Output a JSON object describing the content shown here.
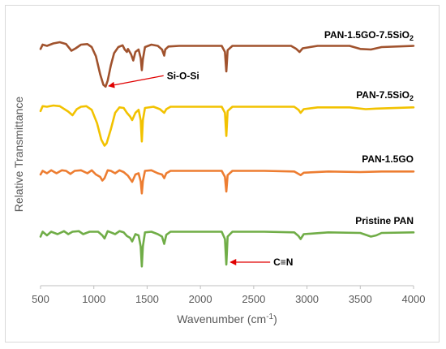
{
  "chart_data": {
    "type": "line",
    "xlabel": "Wavenumber (cm",
    "xlabel_sup": "-1",
    "xlabel_end": ")",
    "ylabel": "Relative Transmittance",
    "xlim": [
      500,
      4000
    ],
    "x_ticks": [
      "500",
      "1000",
      "1500",
      "2000",
      "2500",
      "3000",
      "3500",
      "4000"
    ],
    "grid": false,
    "series": [
      {
        "name": "PAN-1.5GO-7.5SiO",
        "name_sub": "2",
        "color": "#A0522D",
        "baseline": 0.0,
        "points": [
          [
            500,
            -3
          ],
          [
            520,
            4
          ],
          [
            560,
            2
          ],
          [
            620,
            6
          ],
          [
            680,
            8
          ],
          [
            740,
            5
          ],
          [
            790,
            -6
          ],
          [
            830,
            -2
          ],
          [
            880,
            4
          ],
          [
            940,
            5
          ],
          [
            980,
            0
          ],
          [
            1020,
            -15
          ],
          [
            1060,
            -45
          ],
          [
            1090,
            -62
          ],
          [
            1110,
            -65
          ],
          [
            1130,
            -55
          ],
          [
            1160,
            -30
          ],
          [
            1190,
            -10
          ],
          [
            1230,
            0
          ],
          [
            1270,
            3
          ],
          [
            1290,
            -4
          ],
          [
            1310,
            -8
          ],
          [
            1320,
            -3
          ],
          [
            1350,
            -12
          ],
          [
            1370,
            -22
          ],
          [
            1390,
            -8
          ],
          [
            1420,
            -4
          ],
          [
            1440,
            -18
          ],
          [
            1450,
            -38
          ],
          [
            1460,
            -20
          ],
          [
            1480,
            0
          ],
          [
            1540,
            4
          ],
          [
            1600,
            2
          ],
          [
            1640,
            -4
          ],
          [
            1660,
            -14
          ],
          [
            1670,
            -4
          ],
          [
            1700,
            1
          ],
          [
            1800,
            2
          ],
          [
            2000,
            2
          ],
          [
            2200,
            2
          ],
          [
            2230,
            -8
          ],
          [
            2243,
            -40
          ],
          [
            2255,
            -5
          ],
          [
            2300,
            2
          ],
          [
            2600,
            2
          ],
          [
            2850,
            2
          ],
          [
            2900,
            -3
          ],
          [
            2930,
            -8
          ],
          [
            2960,
            -2
          ],
          [
            3100,
            2
          ],
          [
            3400,
            2
          ],
          [
            3500,
            -3
          ],
          [
            3600,
            -4
          ],
          [
            3700,
            0
          ],
          [
            4000,
            2
          ]
        ]
      },
      {
        "name": "PAN-7.5SiO",
        "name_sub": "2",
        "color": "#F2C200",
        "baseline": 0.0,
        "points": [
          [
            500,
            -5
          ],
          [
            520,
            3
          ],
          [
            560,
            2
          ],
          [
            620,
            4
          ],
          [
            680,
            3
          ],
          [
            760,
            -6
          ],
          [
            800,
            -12
          ],
          [
            840,
            -2
          ],
          [
            880,
            2
          ],
          [
            930,
            3
          ],
          [
            980,
            -3
          ],
          [
            1030,
            -25
          ],
          [
            1070,
            -52
          ],
          [
            1100,
            -62
          ],
          [
            1120,
            -58
          ],
          [
            1160,
            -35
          ],
          [
            1200,
            -8
          ],
          [
            1240,
            1
          ],
          [
            1280,
            0
          ],
          [
            1310,
            -8
          ],
          [
            1340,
            -14
          ],
          [
            1360,
            -20
          ],
          [
            1390,
            -8
          ],
          [
            1420,
            -3
          ],
          [
            1440,
            -20
          ],
          [
            1450,
            -55
          ],
          [
            1460,
            -20
          ],
          [
            1480,
            0
          ],
          [
            1560,
            2
          ],
          [
            1620,
            -2
          ],
          [
            1660,
            -8
          ],
          [
            1680,
            -2
          ],
          [
            1720,
            2
          ],
          [
            1900,
            2
          ],
          [
            2200,
            2
          ],
          [
            2230,
            -8
          ],
          [
            2243,
            -46
          ],
          [
            2255,
            -5
          ],
          [
            2300,
            2
          ],
          [
            2600,
            2
          ],
          [
            2880,
            2
          ],
          [
            2920,
            -3
          ],
          [
            2940,
            -8
          ],
          [
            2970,
            -2
          ],
          [
            3100,
            1
          ],
          [
            3400,
            1
          ],
          [
            3550,
            -2
          ],
          [
            3650,
            -1
          ],
          [
            4000,
            1
          ]
        ]
      },
      {
        "name": "PAN-1.5GO",
        "name_sub": "",
        "color": "#ED7D31",
        "baseline": 0.0,
        "points": [
          [
            500,
            -4
          ],
          [
            520,
            2
          ],
          [
            560,
            -2
          ],
          [
            600,
            3
          ],
          [
            650,
            -2
          ],
          [
            700,
            3
          ],
          [
            740,
            2
          ],
          [
            780,
            -3
          ],
          [
            820,
            2
          ],
          [
            880,
            3
          ],
          [
            940,
            -2
          ],
          [
            980,
            3
          ],
          [
            1020,
            -4
          ],
          [
            1060,
            -8
          ],
          [
            1080,
            -14
          ],
          [
            1100,
            -10
          ],
          [
            1130,
            3
          ],
          [
            1160,
            2
          ],
          [
            1200,
            -2
          ],
          [
            1240,
            3
          ],
          [
            1280,
            0
          ],
          [
            1320,
            -6
          ],
          [
            1360,
            -16
          ],
          [
            1390,
            -4
          ],
          [
            1420,
            -2
          ],
          [
            1440,
            -15
          ],
          [
            1450,
            -35
          ],
          [
            1460,
            -15
          ],
          [
            1480,
            2
          ],
          [
            1540,
            3
          ],
          [
            1600,
            -2
          ],
          [
            1640,
            -4
          ],
          [
            1660,
            -10
          ],
          [
            1680,
            -2
          ],
          [
            1720,
            2
          ],
          [
            1900,
            2
          ],
          [
            2200,
            2
          ],
          [
            2230,
            -8
          ],
          [
            2243,
            -32
          ],
          [
            2255,
            -5
          ],
          [
            2300,
            2
          ],
          [
            2600,
            2
          ],
          [
            2880,
            1
          ],
          [
            2920,
            -3
          ],
          [
            2940,
            -5
          ],
          [
            2970,
            -1
          ],
          [
            3200,
            1
          ],
          [
            3500,
            0
          ],
          [
            3700,
            1
          ],
          [
            4000,
            1
          ]
        ]
      },
      {
        "name": "Pristine PAN",
        "name_sub": "",
        "color": "#70AD47",
        "baseline": 0.0,
        "points": [
          [
            500,
            -6
          ],
          [
            520,
            2
          ],
          [
            560,
            -4
          ],
          [
            600,
            2
          ],
          [
            660,
            -2
          ],
          [
            720,
            3
          ],
          [
            760,
            -2
          ],
          [
            800,
            2
          ],
          [
            860,
            3
          ],
          [
            900,
            -2
          ],
          [
            960,
            2
          ],
          [
            1040,
            2
          ],
          [
            1080,
            -4
          ],
          [
            1100,
            -9
          ],
          [
            1130,
            3
          ],
          [
            1160,
            1
          ],
          [
            1200,
            -2
          ],
          [
            1240,
            3
          ],
          [
            1280,
            1
          ],
          [
            1310,
            -5
          ],
          [
            1340,
            -8
          ],
          [
            1360,
            -14
          ],
          [
            1390,
            -2
          ],
          [
            1420,
            -4
          ],
          [
            1440,
            -22
          ],
          [
            1450,
            -55
          ],
          [
            1460,
            -22
          ],
          [
            1480,
            1
          ],
          [
            1540,
            2
          ],
          [
            1600,
            -2
          ],
          [
            1640,
            -6
          ],
          [
            1660,
            -18
          ],
          [
            1680,
            -3
          ],
          [
            1720,
            2
          ],
          [
            1900,
            2
          ],
          [
            2200,
            2
          ],
          [
            2230,
            -10
          ],
          [
            2243,
            -52
          ],
          [
            2255,
            -6
          ],
          [
            2300,
            2
          ],
          [
            2600,
            2
          ],
          [
            2880,
            1
          ],
          [
            2920,
            -5
          ],
          [
            2940,
            -10
          ],
          [
            2970,
            -2
          ],
          [
            3200,
            1
          ],
          [
            3500,
            0
          ],
          [
            3600,
            -6
          ],
          [
            3650,
            -4
          ],
          [
            3700,
            0
          ],
          [
            4000,
            1
          ]
        ]
      }
    ],
    "annotations": [
      {
        "text": "Si-O-Si",
        "target_series": 0,
        "target_x": 1110,
        "target_y": -64,
        "text_x": 1700,
        "text_y": -47
      },
      {
        "text": "C≡N",
        "target_series": 3,
        "target_x": 2252,
        "target_y": -48,
        "text_x": 2700,
        "text_y": -48
      }
    ]
  }
}
